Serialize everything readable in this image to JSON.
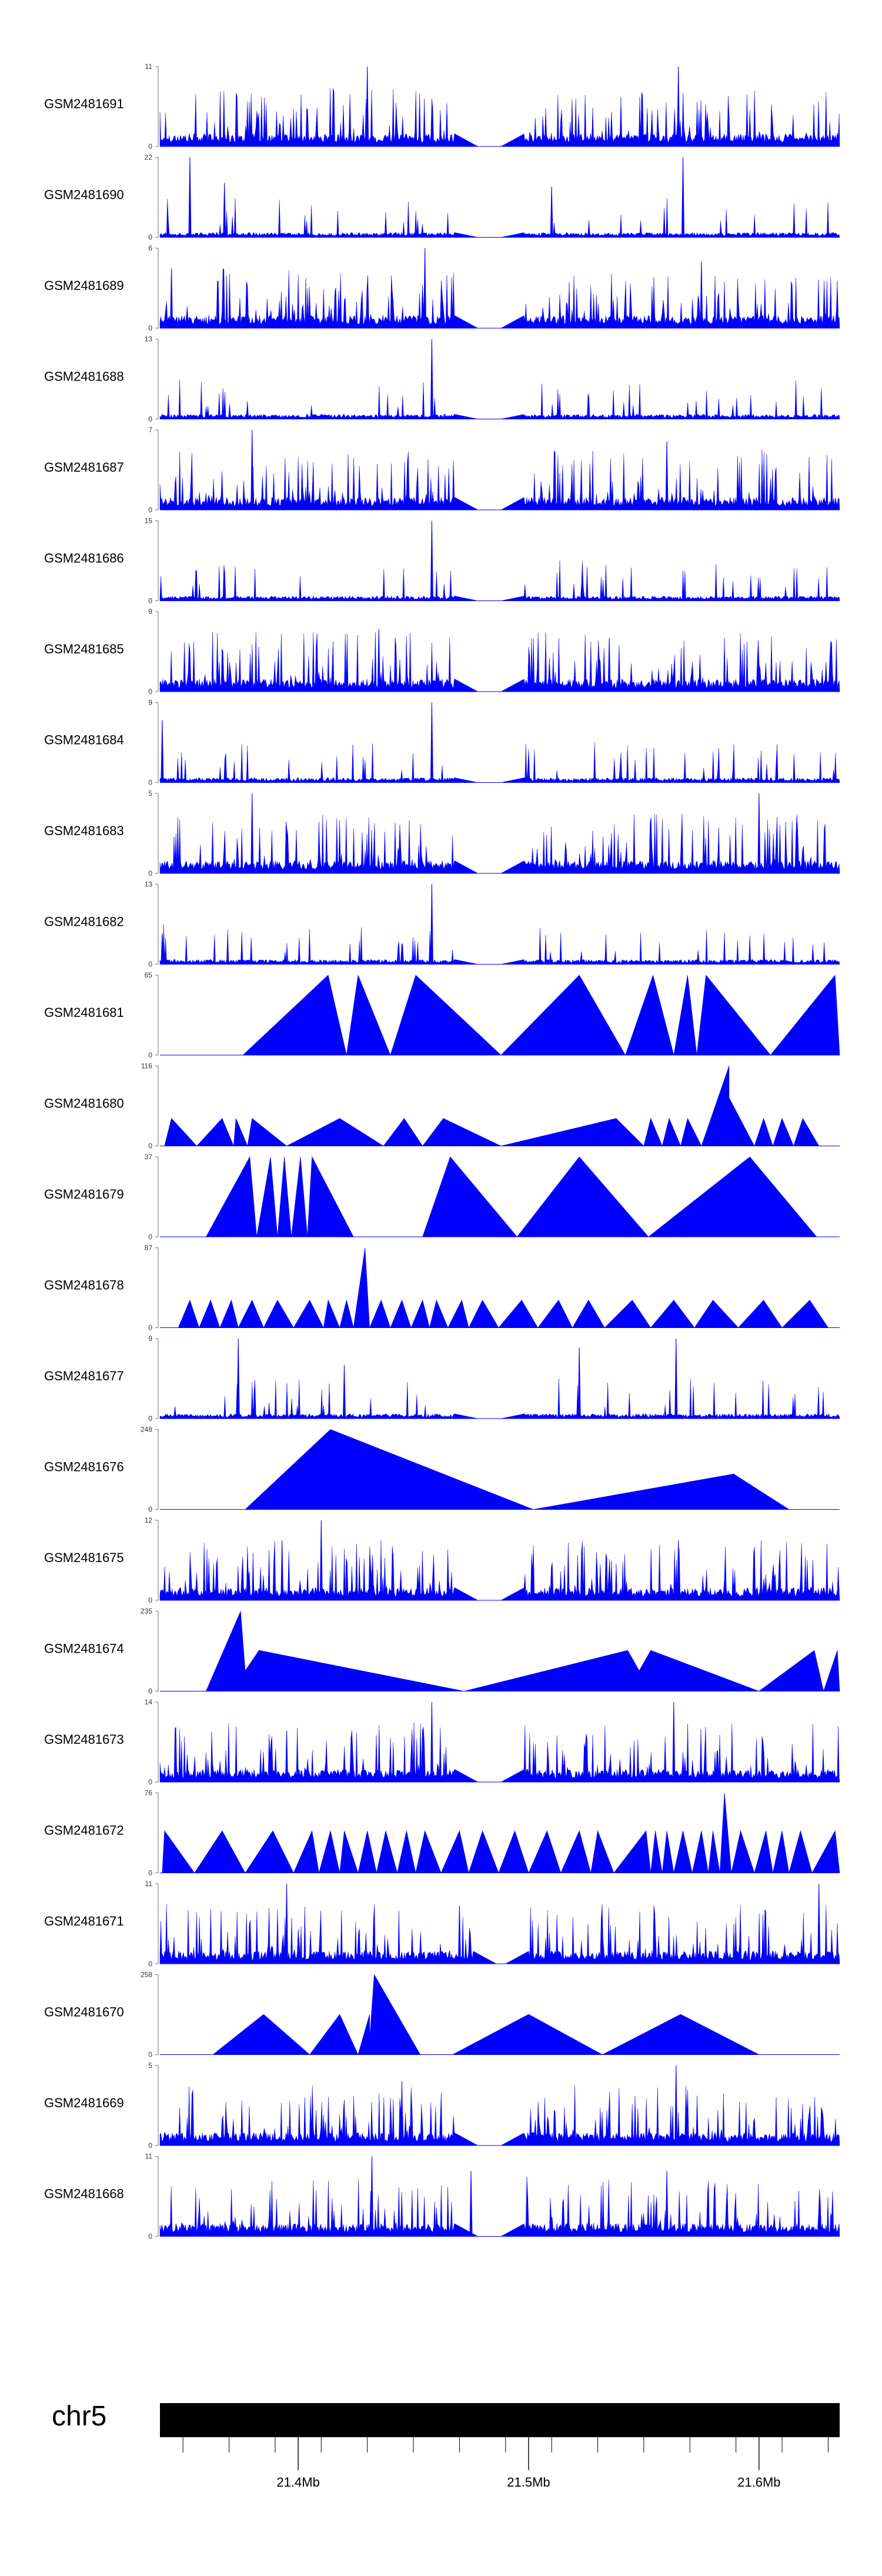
{
  "chart_data": {
    "type": "area",
    "fill_color": "#0000ff",
    "x_unit": "Mb",
    "xlim": [
      21.34,
      21.635
    ],
    "chromosome": {
      "label": "chr5",
      "ticks": [
        21.4,
        21.5,
        21.6
      ],
      "tick_labels": [
        "21.4Mb",
        "21.5Mb",
        "21.6Mb"
      ]
    },
    "tracks": [
      {
        "name": "GSM2481691",
        "ymax": 11,
        "style": "dense",
        "gap": [
          21.478,
          21.488
        ],
        "peaks": [
          [
            21.43,
            11
          ],
          [
            21.565,
            11
          ]
        ]
      },
      {
        "name": "GSM2481690",
        "ymax": 22,
        "style": "spiky",
        "gap": [
          21.478,
          21.488
        ],
        "peaks": [
          [
            21.353,
            22
          ],
          [
            21.368,
            15
          ],
          [
            21.51,
            14
          ],
          [
            21.567,
            22
          ]
        ]
      },
      {
        "name": "GSM2481689",
        "ymax": 6,
        "style": "dense",
        "gap": [
          21.478,
          21.488
        ],
        "peaks": [
          [
            21.345,
            4.5
          ],
          [
            21.455,
            6
          ],
          [
            21.575,
            5
          ]
        ]
      },
      {
        "name": "GSM2481688",
        "ymax": 13,
        "style": "sparse",
        "gap": [
          21.478,
          21.488
        ],
        "peaks": [
          [
            21.458,
            13
          ]
        ]
      },
      {
        "name": "GSM2481687",
        "ymax": 7,
        "style": "dense",
        "gap": [
          21.478,
          21.488
        ],
        "peaks": [
          [
            21.38,
            7
          ],
          [
            21.56,
            6
          ]
        ]
      },
      {
        "name": "GSM2481686",
        "ymax": 15,
        "style": "sparse",
        "gap": [
          21.478,
          21.488
        ],
        "peaks": [
          [
            21.458,
            15
          ]
        ]
      },
      {
        "name": "GSM2481685",
        "ymax": 9,
        "style": "dense",
        "gap": [
          21.478,
          21.488
        ],
        "peaks": [
          [
            21.435,
            7
          ],
          [
            21.535,
            6
          ]
        ]
      },
      {
        "name": "GSM2481684",
        "ymax": 9,
        "style": "sparse",
        "gap": [
          21.478,
          21.488
        ],
        "peaks": [
          [
            21.341,
            7
          ],
          [
            21.458,
            9
          ]
        ]
      },
      {
        "name": "GSM2481683",
        "ymax": 5,
        "style": "dense",
        "gap": [
          21.478,
          21.488
        ],
        "peaks": [
          [
            21.38,
            5
          ],
          [
            21.6,
            5
          ]
        ]
      },
      {
        "name": "GSM2481682",
        "ymax": 13,
        "style": "sparse",
        "gap": [
          21.478,
          21.488
        ],
        "peaks": [
          [
            21.341,
            5
          ],
          [
            21.458,
            13
          ]
        ]
      },
      {
        "name": "GSM2481681",
        "ymax": 65,
        "style": "blocks",
        "points": [
          [
            21.376,
            0
          ],
          [
            21.413,
            65
          ],
          [
            21.421,
            0
          ],
          [
            21.426,
            65
          ],
          [
            21.44,
            0
          ],
          [
            21.451,
            65
          ],
          [
            21.488,
            0
          ],
          [
            21.522,
            65
          ],
          [
            21.542,
            0
          ],
          [
            21.554,
            65
          ],
          [
            21.563,
            0
          ],
          [
            21.569,
            65
          ],
          [
            21.573,
            0
          ],
          [
            21.577,
            65
          ],
          [
            21.605,
            0
          ],
          [
            21.633,
            65
          ],
          [
            21.635,
            0
          ]
        ]
      },
      {
        "name": "GSM2481680",
        "ymax": 116,
        "style": "blocks",
        "points": [
          [
            21.342,
            0
          ],
          [
            21.345,
            40
          ],
          [
            21.356,
            0
          ],
          [
            21.367,
            40
          ],
          [
            21.372,
            0
          ],
          [
            21.373,
            40
          ],
          [
            21.378,
            0
          ],
          [
            21.38,
            40
          ],
          [
            21.395,
            0
          ],
          [
            21.418,
            40
          ],
          [
            21.437,
            0
          ],
          [
            21.446,
            40
          ],
          [
            21.454,
            0
          ],
          [
            21.463,
            40
          ],
          [
            21.488,
            0
          ],
          [
            21.538,
            40
          ],
          [
            21.55,
            0
          ],
          [
            21.553,
            40
          ],
          [
            21.558,
            0
          ],
          [
            21.561,
            40
          ],
          [
            21.566,
            0
          ],
          [
            21.569,
            40
          ],
          [
            21.575,
            0
          ],
          [
            21.587,
            116
          ],
          [
            21.587,
            70
          ],
          [
            21.598,
            0
          ],
          [
            21.602,
            40
          ],
          [
            21.606,
            0
          ],
          [
            21.61,
            40
          ],
          [
            21.615,
            0
          ],
          [
            21.619,
            40
          ],
          [
            21.626,
            0
          ]
        ]
      },
      {
        "name": "GSM2481679",
        "ymax": 37,
        "style": "blocks",
        "points": [
          [
            21.36,
            0
          ],
          [
            21.379,
            37
          ],
          [
            21.382,
            0
          ],
          [
            21.388,
            37
          ],
          [
            21.391,
            0
          ],
          [
            21.394,
            37
          ],
          [
            21.397,
            0
          ],
          [
            21.401,
            37
          ],
          [
            21.404,
            0
          ],
          [
            21.406,
            37
          ],
          [
            21.424,
            0
          ],
          [
            21.452,
            0
          ],
          [
            21.454,
            0
          ],
          [
            21.466,
            37
          ],
          [
            21.495,
            0
          ],
          [
            21.522,
            37
          ],
          [
            21.552,
            0
          ],
          [
            21.596,
            37
          ],
          [
            21.625,
            0
          ]
        ]
      },
      {
        "name": "GSM2481678",
        "ymax": 87,
        "style": "blocks",
        "points": [
          [
            21.348,
            0
          ],
          [
            21.353,
            30
          ],
          [
            21.357,
            0
          ],
          [
            21.362,
            30
          ],
          [
            21.366,
            0
          ],
          [
            21.371,
            30
          ],
          [
            21.374,
            0
          ],
          [
            21.38,
            30
          ],
          [
            21.385,
            0
          ],
          [
            21.391,
            30
          ],
          [
            21.398,
            0
          ],
          [
            21.405,
            30
          ],
          [
            21.411,
            0
          ],
          [
            21.413,
            30
          ],
          [
            21.418,
            0
          ],
          [
            21.421,
            30
          ],
          [
            21.424,
            0
          ],
          [
            21.429,
            87
          ],
          [
            21.431,
            0
          ],
          [
            21.436,
            30
          ],
          [
            21.44,
            0
          ],
          [
            21.445,
            30
          ],
          [
            21.449,
            0
          ],
          [
            21.454,
            30
          ],
          [
            21.457,
            0
          ],
          [
            21.46,
            30
          ],
          [
            21.465,
            0
          ],
          [
            21.471,
            30
          ],
          [
            21.474,
            0
          ],
          [
            21.48,
            30
          ],
          [
            21.487,
            0
          ],
          [
            21.497,
            30
          ],
          [
            21.504,
            0
          ],
          [
            21.513,
            30
          ],
          [
            21.519,
            0
          ],
          [
            21.526,
            30
          ],
          [
            21.533,
            0
          ],
          [
            21.545,
            30
          ],
          [
            21.553,
            0
          ],
          [
            21.563,
            30
          ],
          [
            21.572,
            0
          ],
          [
            21.58,
            30
          ],
          [
            21.591,
            0
          ],
          [
            21.602,
            30
          ],
          [
            21.61,
            0
          ],
          [
            21.622,
            30
          ],
          [
            21.63,
            0
          ]
        ]
      },
      {
        "name": "GSM2481677",
        "ymax": 9,
        "style": "sparse",
        "gap": [
          21.478,
          21.488
        ],
        "peaks": [
          [
            21.374,
            9
          ],
          [
            21.42,
            6
          ],
          [
            21.522,
            8
          ],
          [
            21.564,
            9
          ]
        ]
      },
      {
        "name": "GSM2481676",
        "ymax": 248,
        "style": "blocks",
        "points": [
          [
            21.377,
            0
          ],
          [
            21.414,
            248
          ],
          [
            21.502,
            0
          ],
          [
            21.589,
            110
          ],
          [
            21.613,
            0
          ]
        ]
      },
      {
        "name": "GSM2481675",
        "ymax": 12,
        "style": "dense",
        "gap": [
          21.478,
          21.488
        ],
        "peaks": [
          [
            21.41,
            12
          ],
          [
            21.393,
            9
          ],
          [
            21.565,
            9
          ]
        ]
      },
      {
        "name": "GSM2481674",
        "ymax": 235,
        "style": "blocks",
        "points": [
          [
            21.36,
            0
          ],
          [
            21.375,
            235
          ],
          [
            21.377,
            60
          ],
          [
            21.383,
            120
          ],
          [
            21.472,
            0
          ],
          [
            21.543,
            120
          ],
          [
            21.548,
            60
          ],
          [
            21.553,
            120
          ],
          [
            21.6,
            0
          ],
          [
            21.624,
            120
          ],
          [
            21.628,
            0
          ],
          [
            21.634,
            120
          ],
          [
            21.635,
            0
          ]
        ]
      },
      {
        "name": "GSM2481673",
        "ymax": 14,
        "style": "dense",
        "gap": [
          21.478,
          21.488
        ],
        "peaks": [
          [
            21.458,
            14
          ],
          [
            21.563,
            14
          ],
          [
            21.395,
            9
          ]
        ]
      },
      {
        "name": "GSM2481672",
        "ymax": 76,
        "style": "blocks",
        "points": [
          [
            21.341,
            0
          ],
          [
            21.342,
            40
          ],
          [
            21.355,
            0
          ],
          [
            21.367,
            40
          ],
          [
            21.377,
            0
          ],
          [
            21.389,
            40
          ],
          [
            21.398,
            0
          ],
          [
            21.406,
            40
          ],
          [
            21.409,
            0
          ],
          [
            21.414,
            40
          ],
          [
            21.418,
            0
          ],
          [
            21.42,
            40
          ],
          [
            21.426,
            0
          ],
          [
            21.43,
            40
          ],
          [
            21.434,
            0
          ],
          [
            21.438,
            40
          ],
          [
            21.443,
            0
          ],
          [
            21.447,
            40
          ],
          [
            21.451,
            0
          ],
          [
            21.455,
            40
          ],
          [
            21.462,
            0
          ],
          [
            21.47,
            40
          ],
          [
            21.474,
            0
          ],
          [
            21.48,
            40
          ],
          [
            21.487,
            0
          ],
          [
            21.494,
            40
          ],
          [
            21.5,
            0
          ],
          [
            21.508,
            40
          ],
          [
            21.514,
            0
          ],
          [
            21.522,
            40
          ],
          [
            21.527,
            0
          ],
          [
            21.53,
            40
          ],
          [
            21.537,
            0
          ],
          [
            21.551,
            40
          ],
          [
            21.553,
            0
          ],
          [
            21.555,
            40
          ],
          [
            21.558,
            0
          ],
          [
            21.56,
            40
          ],
          [
            21.563,
            0
          ],
          [
            21.567,
            40
          ],
          [
            21.571,
            0
          ],
          [
            21.575,
            40
          ],
          [
            21.578,
            0
          ],
          [
            21.58,
            40
          ],
          [
            21.583,
            0
          ],
          [
            21.585,
            76
          ],
          [
            21.588,
            0
          ],
          [
            21.592,
            40
          ],
          [
            21.598,
            0
          ],
          [
            21.603,
            40
          ],
          [
            21.606,
            0
          ],
          [
            21.61,
            40
          ],
          [
            21.613,
            0
          ],
          [
            21.618,
            40
          ],
          [
            21.623,
            0
          ],
          [
            21.633,
            40
          ],
          [
            21.635,
            0
          ]
        ]
      },
      {
        "name": "GSM2481671",
        "ymax": 11,
        "style": "dense",
        "gap": [
          21.486,
          21.49
        ],
        "peaks": [
          [
            21.395,
            11
          ],
          [
            21.626,
            11
          ],
          [
            21.47,
            8
          ]
        ]
      },
      {
        "name": "GSM2481670",
        "ymax": 258,
        "style": "blocks",
        "points": [
          [
            21.363,
            0
          ],
          [
            21.385,
            130
          ],
          [
            21.405,
            0
          ],
          [
            21.418,
            130
          ],
          [
            21.426,
            0
          ],
          [
            21.431,
            130
          ],
          [
            21.431,
            50
          ],
          [
            21.433,
            258
          ],
          [
            21.453,
            0
          ],
          [
            21.467,
            0
          ],
          [
            21.5,
            130
          ],
          [
            21.532,
            0
          ],
          [
            21.566,
            130
          ],
          [
            21.6,
            0
          ]
        ]
      },
      {
        "name": "GSM2481669",
        "ymax": 5,
        "style": "dense",
        "gap": [
          21.478,
          21.488
        ],
        "peaks": [
          [
            21.445,
            4
          ],
          [
            21.564,
            5
          ]
        ]
      },
      {
        "name": "GSM2481668",
        "ymax": 11,
        "style": "dense",
        "gap": [
          21.478,
          21.488
        ],
        "peaks": [
          [
            21.432,
            11
          ],
          [
            21.475,
            9
          ],
          [
            21.56,
            9
          ]
        ]
      }
    ]
  }
}
